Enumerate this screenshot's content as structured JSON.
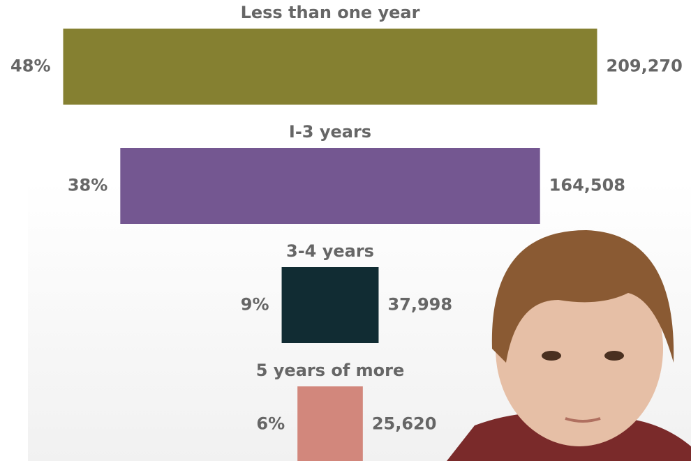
{
  "chart_data": {
    "type": "centered-bar",
    "categories": [
      "Less than one year",
      "I-3 years",
      "3-4 years",
      "5 years of more"
    ],
    "values": [
      209270,
      164508,
      37998,
      25620
    ],
    "value_labels": [
      "209,270",
      "164,508",
      "37,998",
      "25,620"
    ],
    "shares": [
      48,
      38,
      9,
      6
    ],
    "share_labels": [
      "48%",
      "38%",
      "9%",
      "6%"
    ],
    "colors": [
      "#858031",
      "#745791",
      "#112c33",
      "#d2877c"
    ]
  }
}
